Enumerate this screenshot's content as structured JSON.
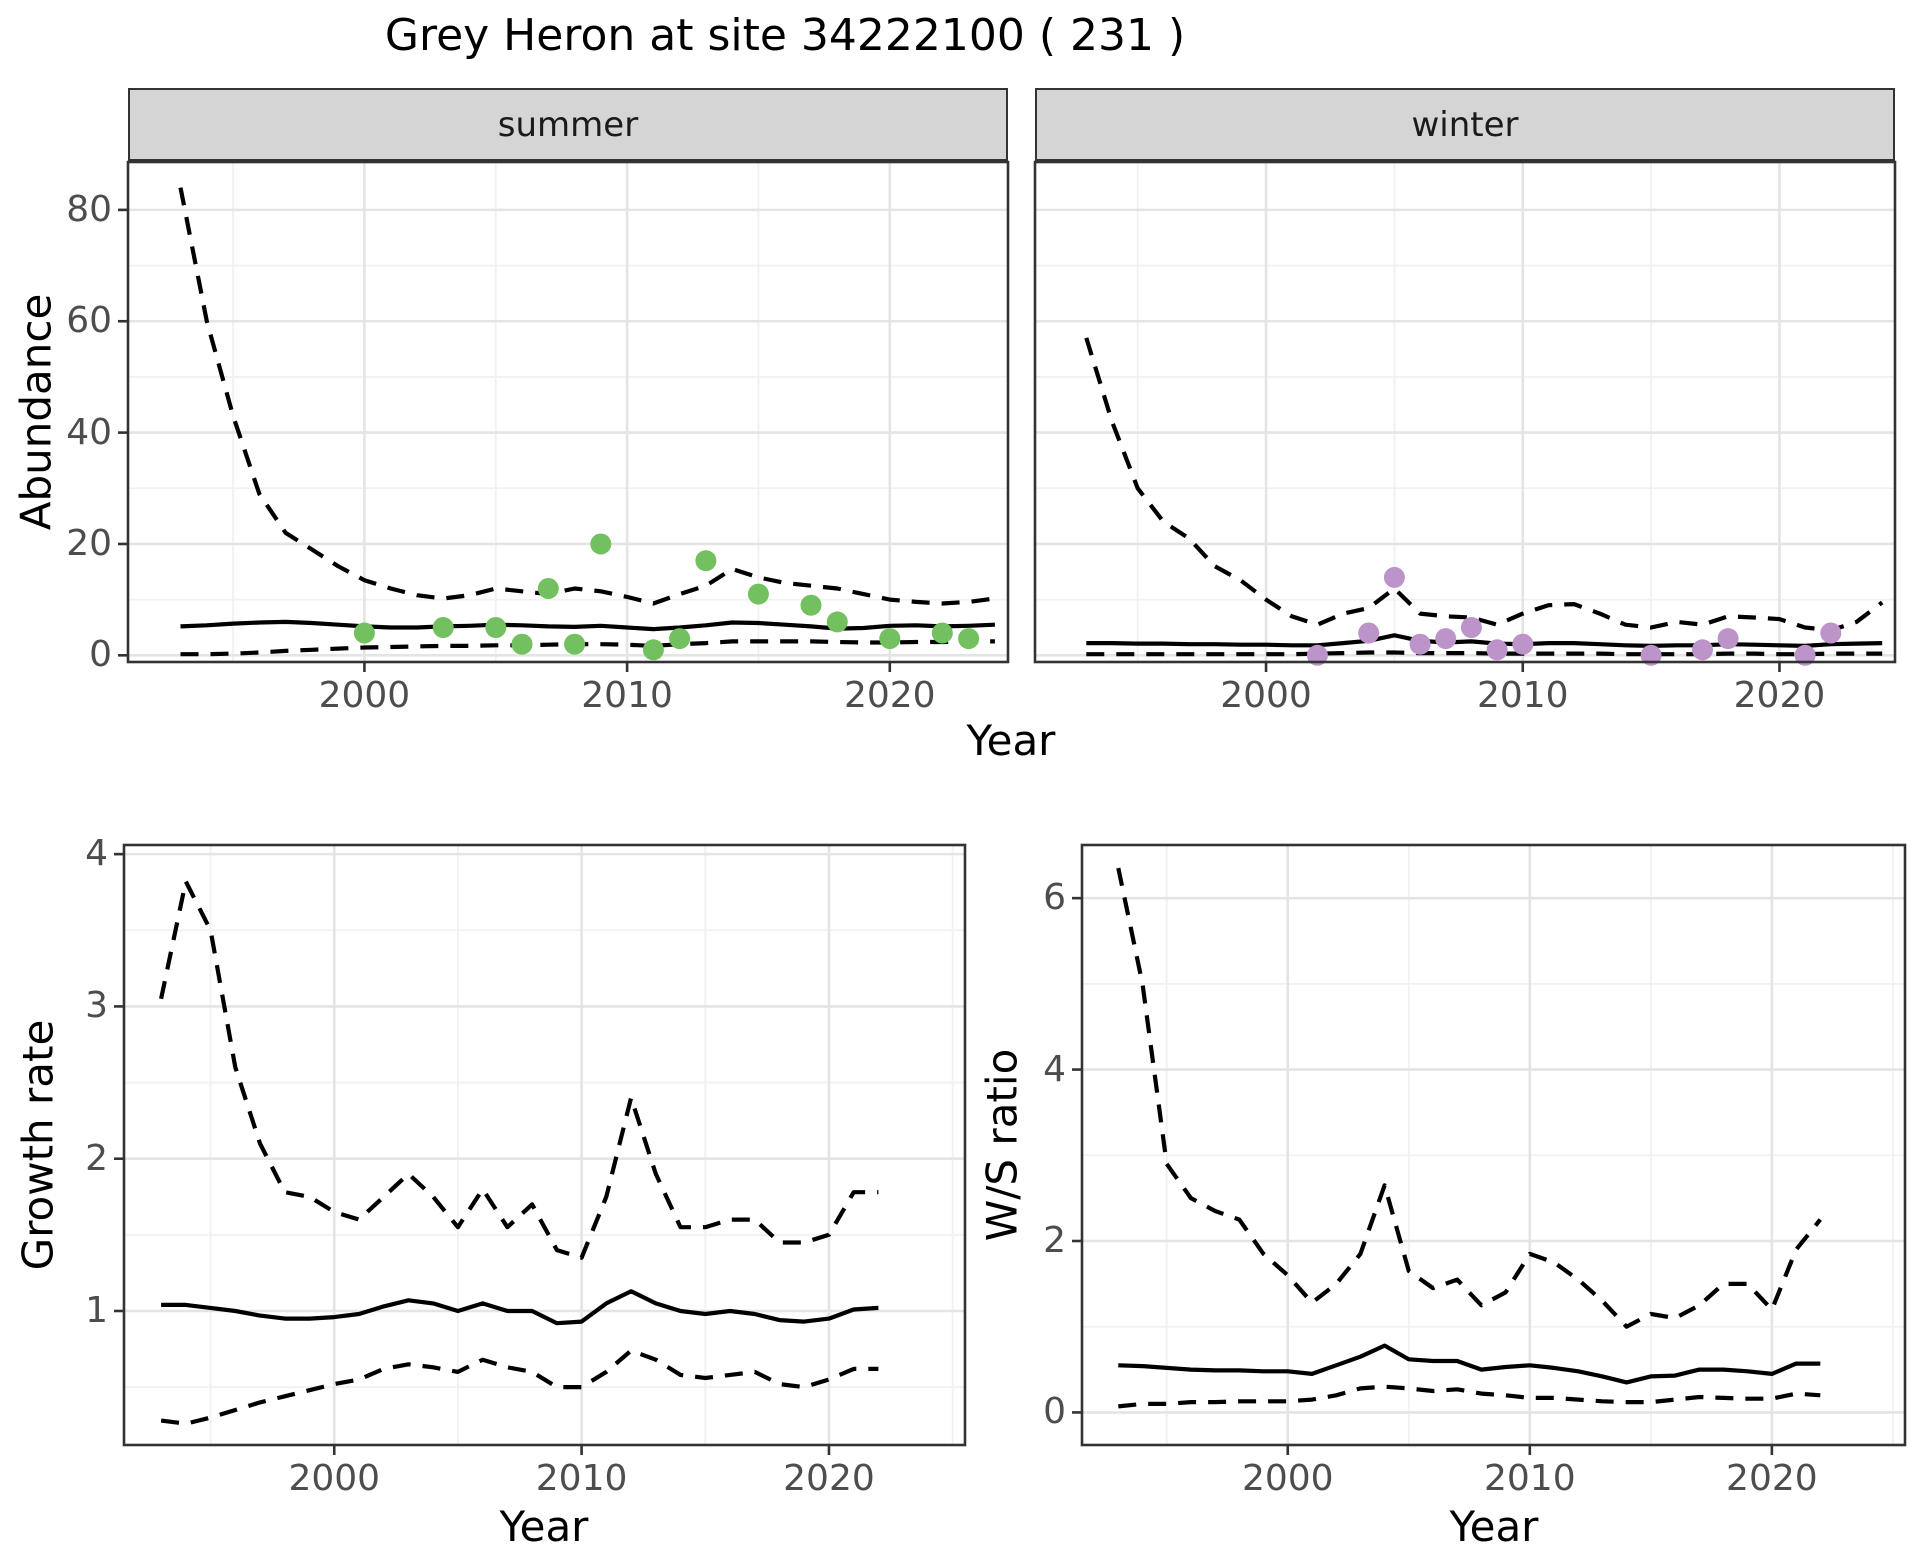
{
  "figure": {
    "title": "Grey Heron at site 34222100 ( 231 )",
    "x_axis_title": "Year",
    "colors": {
      "summer_point": "#72C05F",
      "winter_point": "#BC94C9",
      "line": "#000000",
      "strip_bg": "#D5D5D5",
      "panel_border": "#333333",
      "grid_major": "#E4E4E4",
      "grid_minor": "#F1F1F1",
      "tick_label": "#4D4D4D"
    }
  },
  "chart_data": {
    "type": "line",
    "title": "Grey Heron at site 34222100 ( 231 )",
    "facets": [
      "summer",
      "winter"
    ],
    "legend": "none",
    "grid": "on",
    "line_styles": {
      "median": "solid",
      "upper": "dashed",
      "lower": "dashed"
    },
    "panels": [
      {
        "id": "abundance-summer",
        "facet_label": "summer",
        "ylabel": "Abundance",
        "xlabel": "Year",
        "xlim": [
          1991,
          2024.5
        ],
        "ylim": [
          -1.2,
          88.6
        ],
        "xticks": [
          2000,
          2010,
          2020
        ],
        "yticks": [
          0,
          20,
          40,
          60,
          80
        ],
        "xticks_minor": [
          1995,
          2005,
          2015
        ],
        "yticks_minor": [
          10,
          30,
          50,
          70
        ],
        "show_y_tick_labels": true,
        "years": [
          1993,
          1994,
          1995,
          1996,
          1997,
          1998,
          1999,
          2000,
          2001,
          2002,
          2003,
          2004,
          2005,
          2006,
          2007,
          2008,
          2009,
          2010,
          2011,
          2012,
          2013,
          2014,
          2015,
          2016,
          2017,
          2018,
          2019,
          2020,
          2021,
          2022,
          2023,
          2024
        ],
        "series": {
          "upper": [
            84,
            60,
            43,
            29,
            22,
            19,
            16,
            13.5,
            12,
            10.8,
            10.2,
            10.8,
            12,
            11.5,
            11,
            12,
            11.5,
            10.5,
            9.3,
            11,
            12.5,
            15.5,
            14,
            13,
            12.5,
            12,
            11,
            10,
            9.6,
            9.3,
            9.6,
            10.2
          ],
          "median": [
            5.2,
            5.4,
            5.7,
            5.9,
            6.0,
            5.8,
            5.5,
            5.2,
            5.0,
            5.0,
            5.2,
            5.3,
            5.5,
            5.4,
            5.2,
            5.1,
            5.3,
            5.0,
            4.7,
            5.0,
            5.4,
            5.9,
            5.8,
            5.5,
            5.2,
            4.8,
            4.9,
            5.3,
            5.4,
            5.2,
            5.3,
            5.5
          ],
          "lower": [
            0.2,
            0.2,
            0.3,
            0.5,
            0.8,
            1.0,
            1.2,
            1.4,
            1.5,
            1.6,
            1.7,
            1.7,
            1.8,
            1.8,
            1.9,
            2.0,
            2.0,
            1.9,
            1.7,
            2.0,
            2.2,
            2.5,
            2.5,
            2.5,
            2.5,
            2.4,
            2.3,
            2.3,
            2.4,
            2.4,
            2.5,
            2.5
          ]
        },
        "points": {
          "color": "#72C05F",
          "x": [
            2000,
            2003,
            2005,
            2006,
            2007,
            2008,
            2009,
            2011,
            2012,
            2013,
            2015,
            2017,
            2018,
            2020,
            2022,
            2023
          ],
          "y": [
            4,
            5,
            5,
            2,
            12,
            2,
            20,
            1,
            3,
            17,
            11,
            9,
            6,
            3,
            4,
            3
          ]
        }
      },
      {
        "id": "abundance-winter",
        "facet_label": "winter",
        "ylabel": "Abundance",
        "xlabel": "Year",
        "xlim": [
          1991,
          2024.5
        ],
        "ylim": [
          -1.2,
          88.6
        ],
        "xticks": [
          2000,
          2010,
          2020
        ],
        "yticks": [
          0,
          20,
          40,
          60,
          80
        ],
        "xticks_minor": [
          1995,
          2005,
          2015
        ],
        "yticks_minor": [
          10,
          30,
          50,
          70
        ],
        "show_y_tick_labels": false,
        "years": [
          1993,
          1994,
          1995,
          1996,
          1997,
          1998,
          1999,
          2000,
          2001,
          2002,
          2003,
          2004,
          2005,
          2006,
          2007,
          2008,
          2009,
          2010,
          2011,
          2012,
          2013,
          2014,
          2015,
          2016,
          2017,
          2018,
          2019,
          2020,
          2021,
          2022,
          2023,
          2024
        ],
        "series": {
          "upper": [
            57,
            42,
            30,
            24,
            21,
            16,
            13.5,
            10,
            7,
            5.5,
            7.5,
            8.5,
            12,
            7.5,
            7,
            6.8,
            5.5,
            7.5,
            9,
            9.2,
            7.5,
            5.5,
            5,
            6,
            5.5,
            7,
            6.8,
            6.5,
            5,
            4.5,
            6,
            9.5
          ],
          "median": [
            2.2,
            2.2,
            2.1,
            2.1,
            2.0,
            2.0,
            1.9,
            1.9,
            1.8,
            1.8,
            2.2,
            2.6,
            3.6,
            2.6,
            2.3,
            2.5,
            2.1,
            2.0,
            2.2,
            2.2,
            2.0,
            1.8,
            1.7,
            1.8,
            1.8,
            2.0,
            1.9,
            1.8,
            1.7,
            2.0,
            2.1,
            2.2
          ],
          "lower": [
            0.2,
            0.2,
            0.2,
            0.2,
            0.2,
            0.2,
            0.2,
            0.2,
            0.2,
            0.3,
            0.4,
            0.5,
            0.5,
            0.4,
            0.4,
            0.4,
            0.3,
            0.3,
            0.3,
            0.3,
            0.3,
            0.2,
            0.2,
            0.2,
            0.2,
            0.3,
            0.3,
            0.2,
            0.2,
            0.3,
            0.3,
            0.3
          ]
        },
        "points": {
          "color": "#BC94C9",
          "x": [
            2002,
            2004,
            2005,
            2006,
            2007,
            2008,
            2009,
            2010,
            2015,
            2017,
            2018,
            2021,
            2022
          ],
          "y": [
            0,
            4,
            14,
            2,
            3,
            5,
            1,
            2,
            0,
            1,
            3,
            0,
            4
          ]
        }
      },
      {
        "id": "growth-rate",
        "facet_label": "",
        "ylabel": "Growth rate",
        "xlabel": "Year",
        "xlim": [
          1991.5,
          2025.5
        ],
        "ylim": [
          0.12,
          4.06
        ],
        "xticks": [
          2000,
          2010,
          2020
        ],
        "yticks": [
          1,
          2,
          3,
          4
        ],
        "xticks_minor": [
          1995,
          2005,
          2015,
          2025
        ],
        "yticks_minor": [
          0.5,
          1.5,
          2.5,
          3.5
        ],
        "show_y_tick_labels": true,
        "years": [
          1993,
          1994,
          1995,
          1996,
          1997,
          1998,
          1999,
          2000,
          2001,
          2002,
          2003,
          2004,
          2005,
          2006,
          2007,
          2008,
          2009,
          2010,
          2011,
          2012,
          2013,
          2014,
          2015,
          2016,
          2017,
          2018,
          2019,
          2020,
          2021,
          2022
        ],
        "series": {
          "upper": [
            3.05,
            3.82,
            3.5,
            2.6,
            2.1,
            1.78,
            1.75,
            1.65,
            1.6,
            1.75,
            1.9,
            1.75,
            1.55,
            1.8,
            1.55,
            1.7,
            1.4,
            1.35,
            1.75,
            2.4,
            1.9,
            1.55,
            1.55,
            1.6,
            1.6,
            1.45,
            1.45,
            1.5,
            1.78,
            1.78
          ],
          "median": [
            1.04,
            1.04,
            1.02,
            1.0,
            0.97,
            0.95,
            0.95,
            0.96,
            0.98,
            1.03,
            1.07,
            1.05,
            1.0,
            1.05,
            1.0,
            1.0,
            0.92,
            0.93,
            1.05,
            1.13,
            1.05,
            1.0,
            0.98,
            1.0,
            0.98,
            0.94,
            0.93,
            0.95,
            1.01,
            1.02
          ],
          "lower": [
            0.28,
            0.26,
            0.3,
            0.35,
            0.4,
            0.44,
            0.48,
            0.52,
            0.55,
            0.62,
            0.65,
            0.63,
            0.6,
            0.68,
            0.63,
            0.6,
            0.5,
            0.5,
            0.6,
            0.74,
            0.68,
            0.58,
            0.56,
            0.58,
            0.6,
            0.52,
            0.5,
            0.55,
            0.62,
            0.62
          ]
        },
        "points": null
      },
      {
        "id": "ws-ratio",
        "facet_label": "",
        "ylabel": "W/S ratio",
        "xlabel": "Year",
        "xlim": [
          1991.5,
          2025.5
        ],
        "ylim": [
          -0.38,
          6.62
        ],
        "xticks": [
          2000,
          2010,
          2020
        ],
        "yticks": [
          0,
          2,
          4,
          6
        ],
        "xticks_minor": [
          1995,
          2005,
          2015,
          2025
        ],
        "yticks_minor": [
          1,
          3,
          5
        ],
        "show_y_tick_labels": true,
        "years": [
          1993,
          1994,
          1995,
          1996,
          1997,
          1998,
          1999,
          2000,
          2001,
          2002,
          2003,
          2004,
          2005,
          2006,
          2007,
          2008,
          2009,
          2010,
          2011,
          2012,
          2013,
          2014,
          2015,
          2016,
          2017,
          2018,
          2019,
          2020,
          2021,
          2022
        ],
        "series": {
          "upper": [
            6.35,
            5.0,
            2.9,
            2.5,
            2.35,
            2.25,
            1.85,
            1.6,
            1.28,
            1.5,
            1.85,
            2.65,
            1.65,
            1.45,
            1.55,
            1.25,
            1.4,
            1.85,
            1.75,
            1.55,
            1.3,
            1.0,
            1.15,
            1.1,
            1.25,
            1.5,
            1.5,
            1.2,
            1.9,
            2.25
          ],
          "median": [
            0.55,
            0.54,
            0.52,
            0.5,
            0.49,
            0.49,
            0.48,
            0.48,
            0.45,
            0.55,
            0.65,
            0.78,
            0.62,
            0.6,
            0.6,
            0.5,
            0.53,
            0.55,
            0.52,
            0.48,
            0.42,
            0.35,
            0.42,
            0.43,
            0.5,
            0.5,
            0.48,
            0.45,
            0.57,
            0.57
          ],
          "lower": [
            0.07,
            0.1,
            0.1,
            0.12,
            0.12,
            0.13,
            0.13,
            0.13,
            0.15,
            0.2,
            0.28,
            0.3,
            0.28,
            0.25,
            0.27,
            0.22,
            0.2,
            0.17,
            0.17,
            0.15,
            0.13,
            0.12,
            0.12,
            0.15,
            0.18,
            0.17,
            0.16,
            0.16,
            0.22,
            0.2
          ]
        },
        "points": null
      }
    ]
  }
}
